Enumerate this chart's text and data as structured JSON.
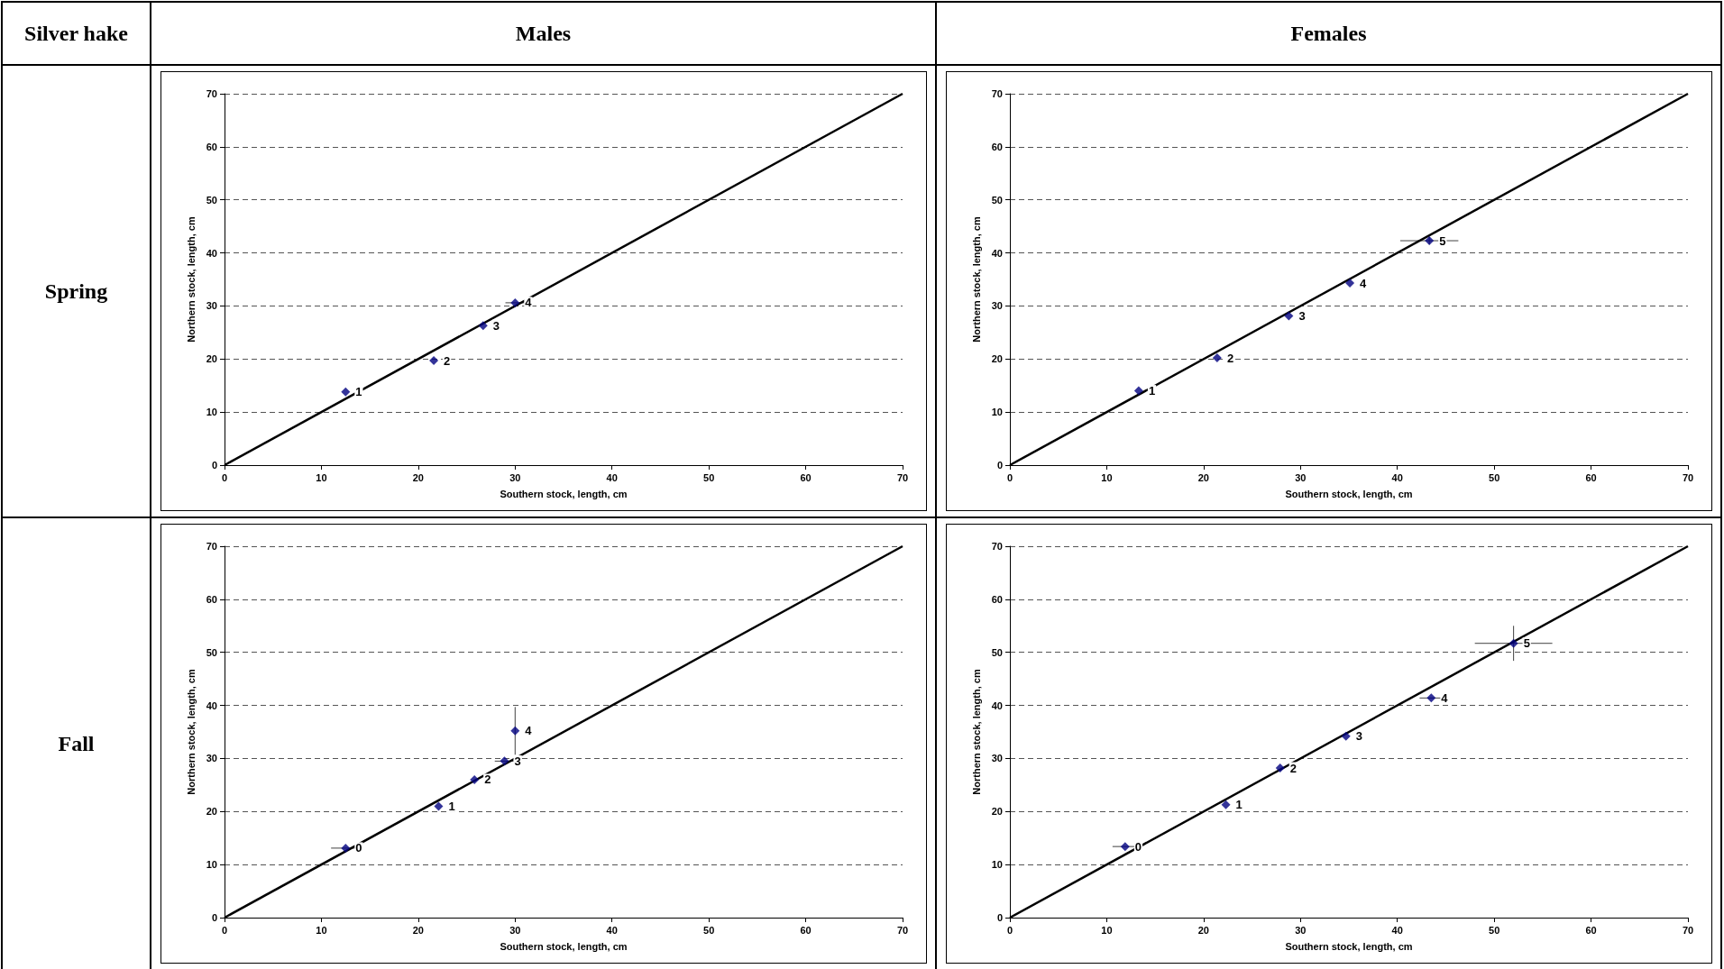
{
  "chart_data": [
    {
      "type": "scatter",
      "title": "Males",
      "xlabel": "Southern stock, length, cm",
      "ylabel": "Northern stock, length, cm",
      "xlim": [
        0,
        70
      ],
      "ylim": [
        0,
        70
      ],
      "xticks": [
        0,
        10,
        20,
        30,
        40,
        50,
        60,
        70
      ],
      "yticks": [
        0,
        10,
        20,
        30,
        40,
        50,
        60,
        70
      ],
      "grid": "y",
      "annotations": [
        "Silver hake",
        "Spring",
        {
          "text": "1",
          "x": 12.5,
          "y": 13.8
        },
        {
          "text": "2",
          "x": 21.6,
          "y": 19.7
        },
        {
          "text": "3",
          "x": 26.7,
          "y": 26.3
        },
        {
          "text": "4",
          "x": 30.0,
          "y": 30.6
        }
      ],
      "series": [
        {
          "type": "scatter",
          "marker": "diamond",
          "color": "#000080",
          "x": [
            12.5,
            21.6,
            26.7,
            30.0
          ],
          "values": [
            13.8,
            19.7,
            26.3,
            30.6
          ],
          "xerrors": [
            null,
            null,
            null,
            1.0
          ]
        },
        {
          "type": "line",
          "marker": "none",
          "color": "#000000",
          "x": [
            0,
            70
          ],
          "values": [
            0,
            70
          ]
        }
      ]
    },
    {
      "type": "scatter",
      "title": "Females",
      "xlabel": "Southern stock, length, cm",
      "ylabel": "Northern stock, length, cm",
      "xlim": [
        0,
        70
      ],
      "ylim": [
        0,
        70
      ],
      "xticks": [
        0,
        10,
        20,
        30,
        40,
        50,
        60,
        70
      ],
      "yticks": [
        0,
        10,
        20,
        30,
        40,
        50,
        60,
        70
      ],
      "grid": "y",
      "annotations": [
        {
          "text": "1",
          "x": 13.3,
          "y": 14.0
        },
        {
          "text": "2",
          "x": 21.4,
          "y": 20.2
        },
        {
          "text": "3",
          "x": 28.8,
          "y": 28.1
        },
        {
          "text": "4",
          "x": 35.1,
          "y": 34.3
        },
        {
          "text": "5",
          "x": 43.3,
          "y": 42.3
        }
      ],
      "series": [
        {
          "type": "scatter",
          "marker": "diamond",
          "color": "#000080",
          "x": [
            13.3,
            21.4,
            28.8,
            35.1,
            43.3
          ],
          "values": [
            14.0,
            20.2,
            28.1,
            34.3,
            42.3
          ],
          "xerrors": [
            null,
            null,
            null,
            null,
            3.0
          ],
          "errors": [
            null,
            null,
            null,
            null,
            0.7
          ]
        },
        {
          "type": "line",
          "marker": "none",
          "color": "#000000",
          "x": [
            0,
            70
          ],
          "values": [
            0,
            70
          ]
        }
      ]
    },
    {
      "type": "scatter",
      "xlabel": "Southern stock, length, cm",
      "ylabel": "Northern stock, length, cm",
      "xlim": [
        0,
        70
      ],
      "ylim": [
        0,
        70
      ],
      "xticks": [
        0,
        10,
        20,
        30,
        40,
        50,
        60,
        70
      ],
      "yticks": [
        0,
        10,
        20,
        30,
        40,
        50,
        60,
        70
      ],
      "grid": "y",
      "annotations": [
        "Fall",
        {
          "text": "0",
          "x": 12.5,
          "y": 13.1
        },
        {
          "text": "1",
          "x": 22.1,
          "y": 21.0
        },
        {
          "text": "2",
          "x": 25.8,
          "y": 26.0
        },
        {
          "text": "3",
          "x": 28.9,
          "y": 29.5
        },
        {
          "text": "4",
          "x": 30.0,
          "y": 35.2
        }
      ],
      "series": [
        {
          "type": "scatter",
          "marker": "diamond",
          "color": "#000080",
          "x": [
            12.5,
            22.1,
            25.8,
            28.9,
            30.0
          ],
          "values": [
            13.1,
            21.0,
            26.0,
            29.5,
            35.2
          ],
          "xerrors": [
            1.5,
            null,
            null,
            1.0,
            null
          ],
          "errors": [
            null,
            null,
            null,
            null,
            4.5
          ]
        },
        {
          "type": "line",
          "marker": "none",
          "color": "#000000",
          "x": [
            0,
            70
          ],
          "values": [
            0,
            70
          ]
        }
      ]
    },
    {
      "type": "scatter",
      "xlabel": "Southern stock, length, cm",
      "ylabel": "Northern stock, length, cm",
      "xlim": [
        0,
        70
      ],
      "ylim": [
        0,
        70
      ],
      "xticks": [
        0,
        10,
        20,
        30,
        40,
        50,
        60,
        70
      ],
      "yticks": [
        0,
        10,
        20,
        30,
        40,
        50,
        60,
        70
      ],
      "grid": "y",
      "annotations": [
        {
          "text": "0",
          "x": 11.9,
          "y": 13.4
        },
        {
          "text": "1",
          "x": 22.3,
          "y": 21.3
        },
        {
          "text": "2",
          "x": 27.9,
          "y": 28.2
        },
        {
          "text": "3",
          "x": 34.7,
          "y": 34.2
        },
        {
          "text": "4",
          "x": 43.5,
          "y": 41.4
        },
        {
          "text": "5",
          "x": 52.0,
          "y": 51.7
        }
      ],
      "series": [
        {
          "type": "scatter",
          "marker": "diamond",
          "color": "#000080",
          "x": [
            11.9,
            22.3,
            27.9,
            34.7,
            43.5,
            52.0
          ],
          "values": [
            13.4,
            21.3,
            28.2,
            34.2,
            41.4,
            51.7
          ],
          "xerrors": [
            1.3,
            null,
            null,
            null,
            1.2,
            4.0
          ],
          "errors": [
            null,
            null,
            null,
            null,
            null,
            3.3
          ]
        },
        {
          "type": "line",
          "marker": "none",
          "color": "#000000",
          "x": [
            0,
            70
          ],
          "values": [
            0,
            70
          ]
        }
      ]
    }
  ]
}
